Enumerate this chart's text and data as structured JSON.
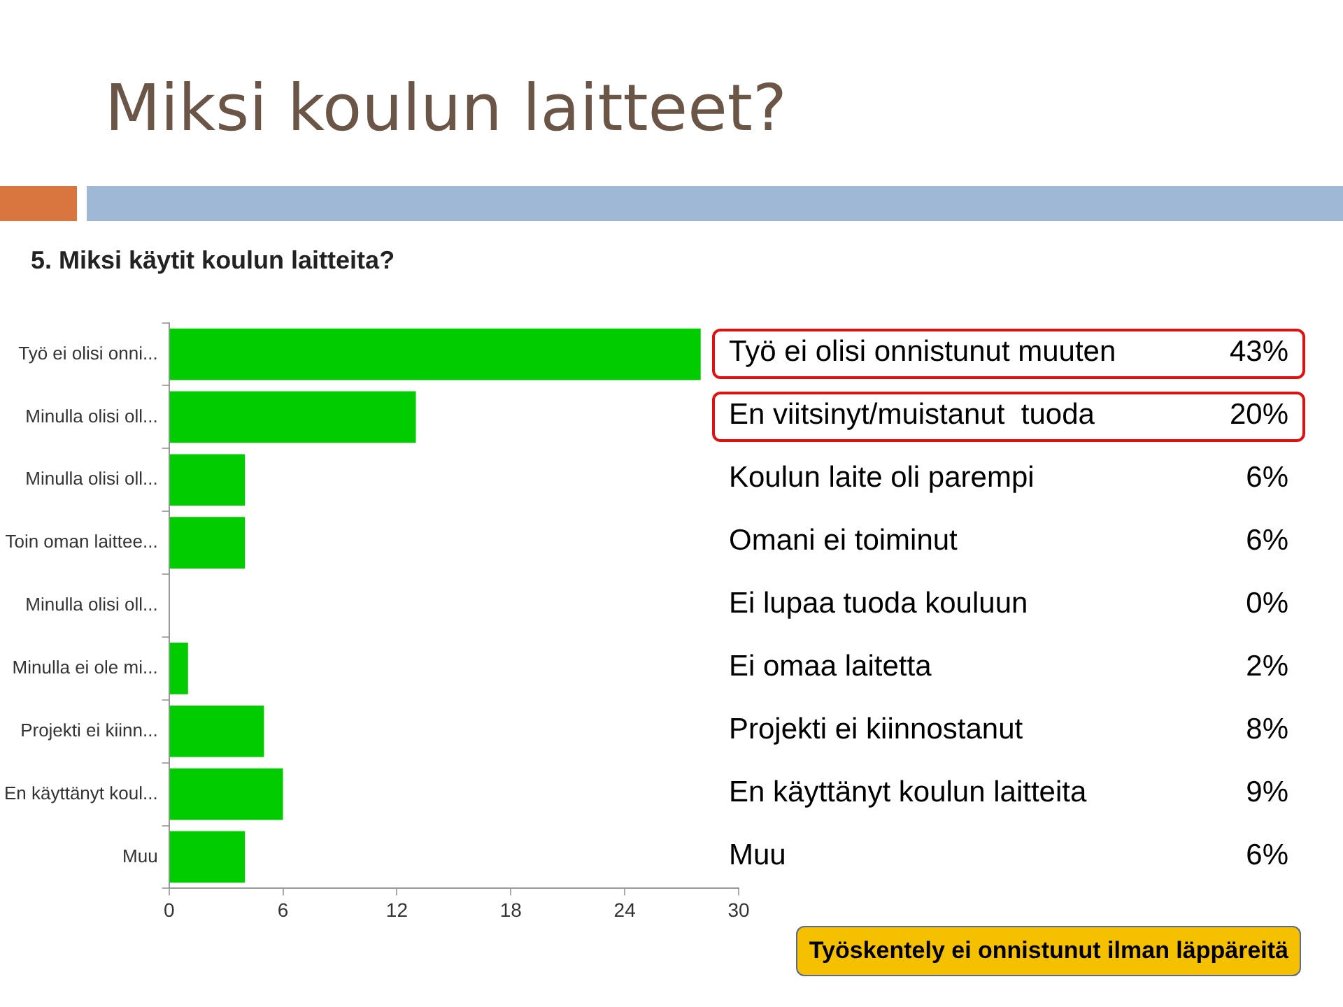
{
  "chart_data": {
    "type": "bar",
    "orientation": "horizontal",
    "title": "Miksi koulun laitteet?",
    "subtitle": "5. Miksi käytit koulun laitteita?",
    "categories": [
      "Työ ei olisi onni...",
      "Minulla olisi oll...",
      "Minulla olisi oll...",
      "Toin oman laittee...",
      "Minulla olisi oll...",
      "Minulla ei ole mi...",
      "Projekti ei kiinn...",
      "En käyttänyt koul...",
      "Muu"
    ],
    "values": [
      28,
      13,
      4,
      4,
      0,
      1,
      5,
      6,
      4
    ],
    "color": "#00cc00",
    "xlim": [
      0,
      30
    ],
    "xticks": [
      0,
      6,
      12,
      18,
      24,
      30
    ],
    "grid": false,
    "legend": false,
    "annotations": [
      "Työ ei olisi onnistunut muuten",
      "43%",
      "En viitsinyt/muistanut  tuoda",
      "20%",
      "Koulun laite oli parempi",
      "6%",
      "Omani ei toiminut",
      "6%",
      "Ei lupaa tuoda kouluun",
      "0%",
      "Ei omaa laitetta",
      "2%",
      "Projekti ei kiinnostanut",
      "8%",
      "En käyttänyt koulun laitteita",
      "9%",
      "Muu",
      "6%",
      "Työskentely ei onnistunut ilman läppäreitä"
    ]
  }
}
